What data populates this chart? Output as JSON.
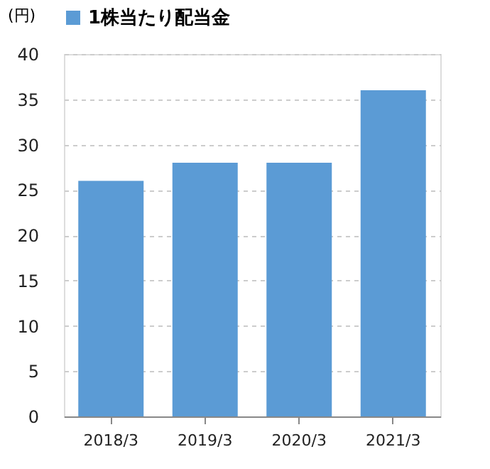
{
  "chart_data": {
    "type": "bar",
    "ylabel": "(円)",
    "legend": "top",
    "categories": [
      "2018/3",
      "2019/3",
      "2020/3",
      "2021/3"
    ],
    "series": [
      {
        "name": "1株当たり配当金",
        "color": "#5b9bd5",
        "values": [
          26,
          28,
          28,
          36
        ]
      }
    ],
    "ylim": [
      0,
      40
    ],
    "yticks": [
      0,
      5,
      10,
      15,
      20,
      25,
      30,
      35,
      40
    ],
    "grid": "y"
  }
}
